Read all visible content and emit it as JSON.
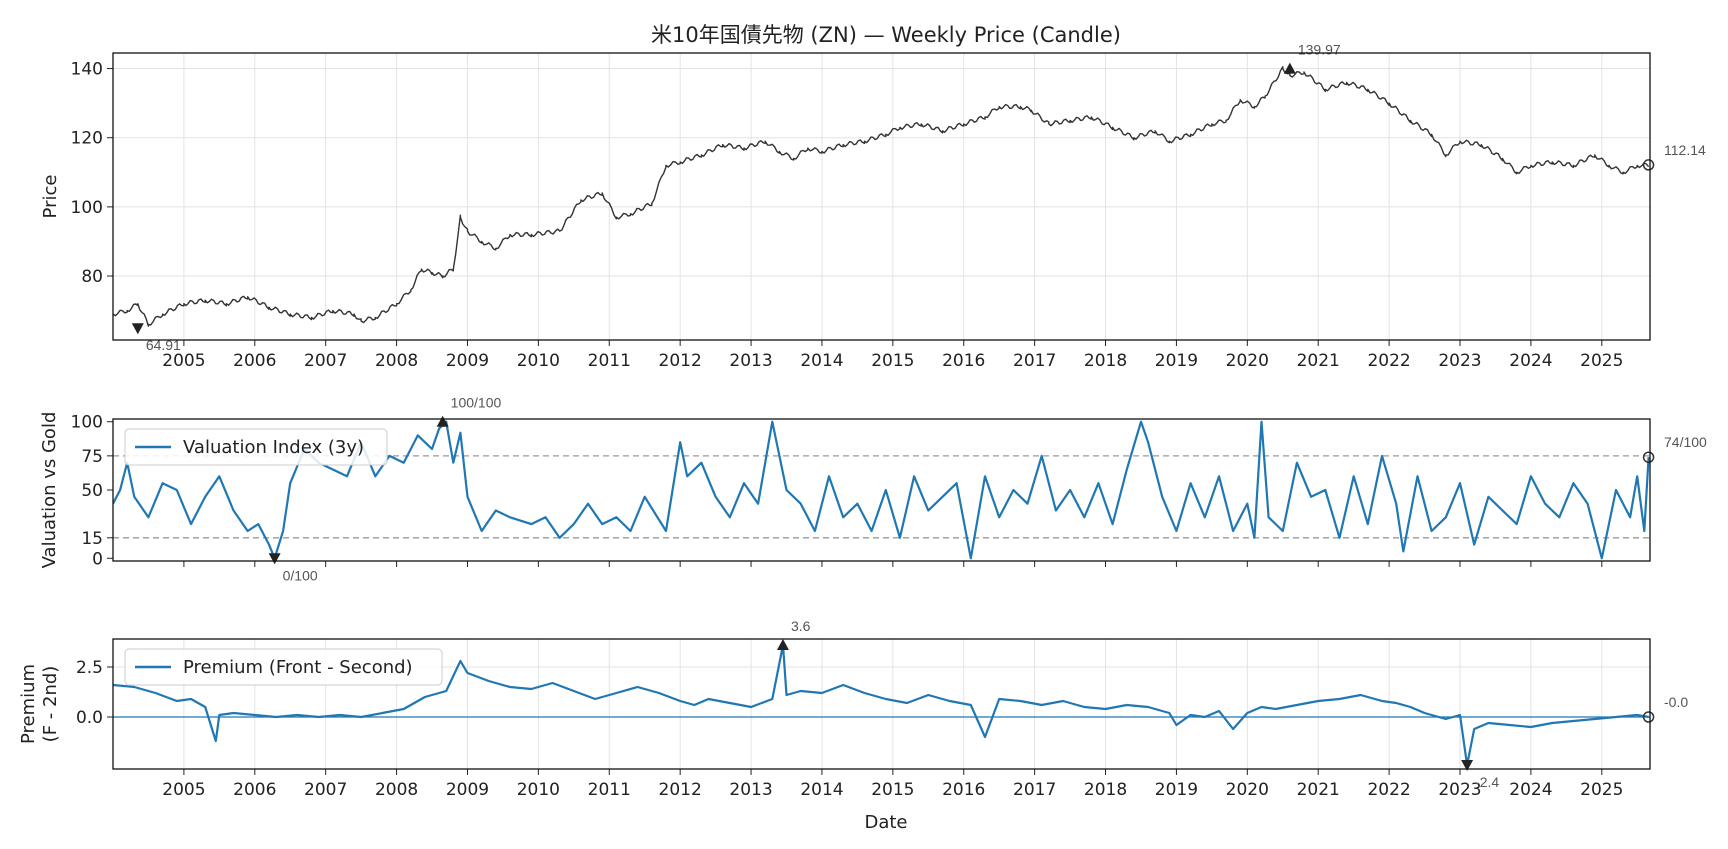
{
  "chart_data": {
    "type": "line",
    "title": "米10年国債先物 (ZN) — Weekly Price (Candle)",
    "x_axis": {
      "label": "Date",
      "range": [
        2004.0,
        2025.68
      ],
      "tick_labels": [
        "2005",
        "2006",
        "2007",
        "2008",
        "2009",
        "2010",
        "2011",
        "2012",
        "2013",
        "2014",
        "2015",
        "2016",
        "2017",
        "2018",
        "2019",
        "2020",
        "2021",
        "2022",
        "2023",
        "2024",
        "2025"
      ]
    },
    "panels": [
      {
        "id": "price",
        "type": "candlestick",
        "ylabel": "Price",
        "ylim": [
          61.5,
          144.5
        ],
        "yticks": [
          "80",
          "100",
          "120",
          "140"
        ],
        "grid": true,
        "color": "#333333",
        "series": [
          {
            "x": [
              2004.0,
              2004.2,
              2004.35,
              2004.5,
              2004.7,
              2005.0,
              2005.3,
              2005.6,
              2005.9,
              2006.2,
              2006.5,
              2006.8,
              2007.1,
              2007.4,
              2007.5,
              2007.7,
              2008.0,
              2008.2,
              2008.35,
              2008.5,
              2008.65,
              2008.8,
              2008.9,
              2009.0,
              2009.2,
              2009.4,
              2009.6,
              2009.9,
              2010.3,
              2010.6,
              2010.9,
              2011.1,
              2011.3,
              2011.6,
              2011.8,
              2012.0,
              2012.3,
              2012.6,
              2012.9,
              2013.2,
              2013.4,
              2013.6,
              2013.8,
              2014.0,
              2014.3,
              2014.6,
              2014.9,
              2015.1,
              2015.4,
              2015.7,
              2016.0,
              2016.3,
              2016.5,
              2016.8,
              2016.95,
              2017.2,
              2017.5,
              2017.8,
              2018.1,
              2018.4,
              2018.7,
              2018.9,
              2019.2,
              2019.5,
              2019.7,
              2019.9,
              2020.1,
              2020.25,
              2020.5,
              2020.6,
              2020.8,
              2021.1,
              2021.4,
              2021.7,
              2022.0,
              2022.3,
              2022.6,
              2022.8,
              2023.0,
              2023.3,
              2023.6,
              2023.8,
              2024.0,
              2024.3,
              2024.6,
              2024.9,
              2025.1,
              2025.3,
              2025.5,
              2025.66
            ],
            "y": [
              69,
              70,
              72,
              66,
              69,
              72,
              73,
              72,
              74,
              71,
              69,
              68,
              70,
              69,
              67,
              68,
              72,
              76,
              82,
              81,
              80,
              82,
              97,
              93,
              90,
              88,
              92,
              92,
              93,
              102,
              104,
              97,
              98,
              101,
              112,
              113,
              115,
              118,
              117,
              119,
              116,
              114,
              117,
              116,
              118,
              119,
              121,
              123,
              124,
              122,
              124,
              126,
              129,
              129,
              128,
              124,
              125,
              126,
              123,
              120,
              122,
              119,
              121,
              124,
              125,
              131,
              129,
              132,
              140,
              138,
              139,
              134,
              136,
              134,
              130,
              125,
              121,
              115,
              119,
              118,
              114,
              110,
              112,
              113,
              112,
              115,
              112,
              110,
              112,
              112.14
            ],
            "min": {
              "x": 2004.35,
              "y": 64.91,
              "label": "64.91"
            },
            "max": {
              "x": 2020.6,
              "y": 139.97,
              "label": "139.97"
            },
            "last": {
              "x": 2025.66,
              "y": 112.14,
              "label": "112.14"
            }
          }
        ]
      },
      {
        "id": "valuation",
        "type": "line",
        "ylabel": "Valuation vs Gold",
        "ylim": [
          -2,
          102
        ],
        "yticks": [
          "0",
          "15",
          "50",
          "75",
          "100"
        ],
        "hlines": [
          15,
          75
        ],
        "grid": false,
        "series": [
          {
            "name": "Valuation Index (3y)",
            "color": "#1f77b4",
            "x": [
              2004.0,
              2004.1,
              2004.2,
              2004.3,
              2004.5,
              2004.7,
              2004.9,
              2005.1,
              2005.3,
              2005.5,
              2005.7,
              2005.9,
              2006.05,
              2006.2,
              2006.28,
              2006.4,
              2006.5,
              2006.7,
              2006.9,
              2007.1,
              2007.3,
              2007.5,
              2007.7,
              2007.9,
              2008.1,
              2008.3,
              2008.5,
              2008.6,
              2008.7,
              2008.8,
              2008.9,
              2009.0,
              2009.2,
              2009.4,
              2009.6,
              2009.9,
              2010.1,
              2010.3,
              2010.5,
              2010.7,
              2010.9,
              2011.1,
              2011.3,
              2011.5,
              2011.8,
              2012.0,
              2012.1,
              2012.3,
              2012.5,
              2012.7,
              2012.9,
              2013.1,
              2013.3,
              2013.5,
              2013.7,
              2013.9,
              2014.1,
              2014.3,
              2014.5,
              2014.7,
              2014.9,
              2015.1,
              2015.3,
              2015.5,
              2015.7,
              2015.9,
              2016.1,
              2016.3,
              2016.5,
              2016.7,
              2016.9,
              2017.1,
              2017.3,
              2017.5,
              2017.7,
              2017.9,
              2018.1,
              2018.3,
              2018.5,
              2018.6,
              2018.8,
              2019.0,
              2019.2,
              2019.4,
              2019.6,
              2019.8,
              2020.0,
              2020.1,
              2020.2,
              2020.3,
              2020.5,
              2020.7,
              2020.9,
              2021.1,
              2021.3,
              2021.5,
              2021.7,
              2021.9,
              2022.1,
              2022.2,
              2022.4,
              2022.6,
              2022.8,
              2023.0,
              2023.2,
              2023.4,
              2023.6,
              2023.8,
              2024.0,
              2024.2,
              2024.4,
              2024.6,
              2024.8,
              2025.0,
              2025.2,
              2025.4,
              2025.5,
              2025.6,
              2025.66
            ],
            "y": [
              40,
              50,
              70,
              45,
              30,
              55,
              50,
              25,
              45,
              60,
              35,
              20,
              25,
              10,
              0,
              20,
              55,
              80,
              70,
              65,
              60,
              85,
              60,
              75,
              70,
              90,
              80,
              95,
              100,
              70,
              92,
              45,
              20,
              35,
              30,
              25,
              30,
              15,
              25,
              40,
              25,
              30,
              20,
              45,
              20,
              85,
              60,
              70,
              45,
              30,
              55,
              40,
              100,
              50,
              40,
              20,
              60,
              30,
              40,
              20,
              50,
              15,
              60,
              35,
              45,
              55,
              0,
              60,
              30,
              50,
              40,
              75,
              35,
              50,
              30,
              55,
              25,
              65,
              100,
              85,
              45,
              20,
              55,
              30,
              60,
              20,
              40,
              15,
              100,
              30,
              20,
              70,
              45,
              50,
              15,
              60,
              25,
              75,
              40,
              5,
              60,
              20,
              30,
              55,
              10,
              45,
              35,
              25,
              60,
              40,
              30,
              55,
              40,
              0,
              50,
              30,
              60,
              20,
              74
            ],
            "min": {
              "x": 2006.28,
              "y": 0,
              "label": "0/100"
            },
            "max": {
              "x": 2008.65,
              "y": 100,
              "label": "100/100"
            },
            "last": {
              "x": 2025.66,
              "y": 74,
              "label": "74/100"
            }
          }
        ]
      },
      {
        "id": "premium",
        "type": "line",
        "ylabel": "Premium\n(F - 2nd)",
        "ylabel_lines": [
          "Premium",
          "(F - 2nd)"
        ],
        "ylim": [
          -2.6,
          3.9
        ],
        "yticks": [
          "0.0",
          "2.5"
        ],
        "hlines": [
          0.0
        ],
        "grid": true,
        "series": [
          {
            "name": "Premium (Front - Second)",
            "color": "#1f77b4",
            "x": [
              2004.0,
              2004.3,
              2004.6,
              2004.9,
              2005.1,
              2005.3,
              2005.45,
              2005.5,
              2005.7,
              2006.0,
              2006.3,
              2006.6,
              2006.9,
              2007.2,
              2007.5,
              2007.8,
              2008.1,
              2008.4,
              2008.7,
              2008.9,
              2009.0,
              2009.3,
              2009.6,
              2009.9,
              2010.2,
              2010.5,
              2010.8,
              2011.1,
              2011.4,
              2011.7,
              2012.0,
              2012.2,
              2012.4,
              2012.7,
              2013.0,
              2013.3,
              2013.45,
              2013.5,
              2013.7,
              2014.0,
              2014.3,
              2014.6,
              2014.9,
              2015.2,
              2015.5,
              2015.8,
              2016.1,
              2016.3,
              2016.5,
              2016.8,
              2017.1,
              2017.4,
              2017.7,
              2018.0,
              2018.3,
              2018.6,
              2018.9,
              2019.0,
              2019.2,
              2019.4,
              2019.6,
              2019.8,
              2020.0,
              2020.2,
              2020.4,
              2020.7,
              2021.0,
              2021.3,
              2021.6,
              2021.9,
              2022.1,
              2022.3,
              2022.5,
              2022.8,
              2023.0,
              2023.1,
              2023.2,
              2023.4,
              2023.7,
              2024.0,
              2024.3,
              2024.6,
              2024.9,
              2025.2,
              2025.5,
              2025.66
            ],
            "y": [
              1.6,
              1.5,
              1.2,
              0.8,
              0.9,
              0.5,
              -1.2,
              0.1,
              0.2,
              0.1,
              0.0,
              0.1,
              0.0,
              0.1,
              0.0,
              0.2,
              0.4,
              1.0,
              1.3,
              2.8,
              2.2,
              1.8,
              1.5,
              1.4,
              1.7,
              1.3,
              0.9,
              1.2,
              1.5,
              1.2,
              0.8,
              0.6,
              0.9,
              0.7,
              0.5,
              0.9,
              3.6,
              1.1,
              1.3,
              1.2,
              1.6,
              1.2,
              0.9,
              0.7,
              1.1,
              0.8,
              0.6,
              -1.0,
              0.9,
              0.8,
              0.6,
              0.8,
              0.5,
              0.4,
              0.6,
              0.5,
              0.2,
              -0.4,
              0.1,
              0.0,
              0.3,
              -0.6,
              0.2,
              0.5,
              0.4,
              0.6,
              0.8,
              0.9,
              1.1,
              0.8,
              0.7,
              0.5,
              0.2,
              -0.1,
              0.1,
              -2.4,
              -0.6,
              -0.3,
              -0.4,
              -0.5,
              -0.3,
              -0.2,
              -0.1,
              0.0,
              0.1,
              0.0
            ],
            "min": {
              "x": 2023.1,
              "y": -2.4,
              "label": "-2.4"
            },
            "max": {
              "x": 2013.45,
              "y": 3.6,
              "label": "3.6"
            },
            "last": {
              "x": 2025.66,
              "y": 0.0,
              "label": "-0.0"
            }
          }
        ]
      }
    ]
  }
}
